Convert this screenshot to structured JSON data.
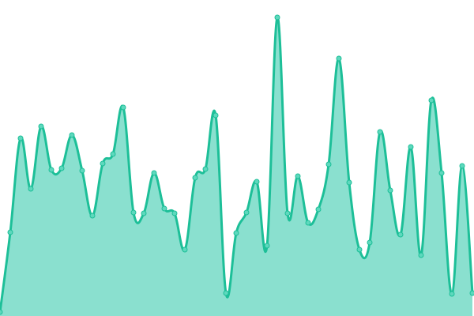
{
  "chart_data": {
    "type": "area",
    "title": "",
    "xlabel": "",
    "ylabel": "",
    "grid": false,
    "legend": "none",
    "ylim": [
      0,
      400
    ],
    "x": [
      0,
      1,
      2,
      3,
      4,
      5,
      6,
      7,
      8,
      9,
      10,
      11,
      12,
      13,
      14,
      15,
      16,
      17,
      18,
      19,
      20,
      21,
      22,
      23,
      24,
      25,
      26,
      27,
      28,
      29,
      30,
      31,
      32,
      33,
      34,
      35,
      36,
      37,
      38,
      39,
      40,
      41,
      42,
      43,
      44,
      45,
      46
    ],
    "series": [
      {
        "values": [
          5,
          106,
          225,
          161,
          240,
          185,
          187,
          229,
          184,
          127,
          193,
          205,
          264,
          131,
          130,
          181,
          136,
          130,
          84,
          175,
          186,
          254,
          29,
          105,
          131,
          170,
          89,
          378,
          130,
          177,
          118,
          135,
          192,
          326,
          169,
          84,
          93,
          233,
          159,
          103,
          214,
          77,
          273,
          181,
          28,
          190,
          29
        ],
        "line_color": "#1dbf98",
        "fill_color": "#8ae0cf",
        "marker_color": "#5ed8bd"
      }
    ]
  }
}
